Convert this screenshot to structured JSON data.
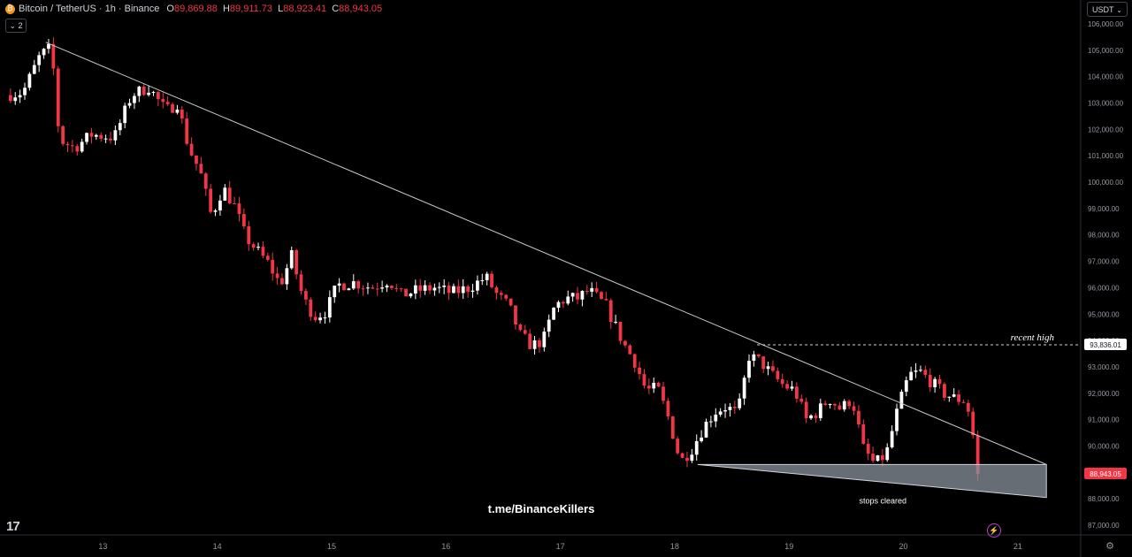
{
  "header": {
    "symbol": "Bitcoin / TetherUS · 1h · Binance",
    "open_label": "O",
    "open": "89,869.88",
    "high_label": "H",
    "high": "89,911.73",
    "low_label": "L",
    "low": "88,923.41",
    "close_label": "C",
    "close": "88,943.05",
    "collapse_label": "⌄ 2",
    "currency": "USDT"
  },
  "colors": {
    "up": "#ffffff",
    "down": "#f23645",
    "background": "#000000",
    "trendline": "#c7c9cf",
    "zone": "#8a919c"
  },
  "icons": [
    "bitcoin-icon",
    "chevron-down-icon",
    "tradingview-logo-icon",
    "settings-icon",
    "lightning-icon"
  ],
  "chart_data": {
    "type": "candlestick",
    "timeframe": "1h",
    "y_ticks": [
      "87,000.00",
      "88,000.00",
      "89,000.00",
      "90,000.00",
      "91,000.00",
      "92,000.00",
      "93,000.00",
      "94,000.00",
      "95,000.00",
      "96,000.00",
      "97,000.00",
      "98,000.00",
      "99,000.00",
      "100,000.00",
      "101,000.00",
      "102,000.00",
      "103,000.00",
      "104,000.00",
      "105,000.00",
      "106,000.00"
    ],
    "ylim": [
      86700,
      106300
    ],
    "x_ticks": [
      "13",
      "14",
      "15",
      "16",
      "17",
      "18",
      "19",
      "20",
      "21"
    ],
    "x_tick_days": [
      13,
      14,
      15,
      16,
      17,
      18,
      19,
      20,
      21
    ],
    "xlim_days": [
      12.1,
      21.55
    ],
    "series_close_path": [
      [
        12.15,
        103300
      ],
      [
        12.3,
        103400
      ],
      [
        12.45,
        104800
      ],
      [
        12.55,
        105100
      ],
      [
        12.62,
        101600
      ],
      [
        12.75,
        101300
      ],
      [
        12.9,
        101800
      ],
      [
        13.1,
        101700
      ],
      [
        13.25,
        103300
      ],
      [
        13.4,
        103600
      ],
      [
        13.55,
        102700
      ],
      [
        13.65,
        103000
      ],
      [
        13.75,
        101300
      ],
      [
        13.85,
        100400
      ],
      [
        13.95,
        98700
      ],
      [
        14.05,
        99800
      ],
      [
        14.15,
        99100
      ],
      [
        14.25,
        97900
      ],
      [
        14.35,
        97400
      ],
      [
        14.45,
        96900
      ],
      [
        14.55,
        96100
      ],
      [
        14.65,
        97200
      ],
      [
        14.75,
        95600
      ],
      [
        14.85,
        94900
      ],
      [
        14.95,
        95100
      ],
      [
        15.05,
        96100
      ],
      [
        15.2,
        96200
      ],
      [
        15.35,
        96000
      ],
      [
        15.5,
        96300
      ],
      [
        15.6,
        95700
      ],
      [
        15.75,
        95900
      ],
      [
        15.9,
        96000
      ],
      [
        16.05,
        95800
      ],
      [
        16.2,
        96000
      ],
      [
        16.35,
        96400
      ],
      [
        16.45,
        95700
      ],
      [
        16.55,
        95300
      ],
      [
        16.65,
        94200
      ],
      [
        16.75,
        93800
      ],
      [
        16.85,
        94000
      ],
      [
        16.95,
        95300
      ],
      [
        17.05,
        95600
      ],
      [
        17.15,
        95600
      ],
      [
        17.25,
        95900
      ],
      [
        17.4,
        95300
      ],
      [
        17.55,
        93900
      ],
      [
        17.65,
        93200
      ],
      [
        17.75,
        92100
      ],
      [
        17.85,
        92200
      ],
      [
        17.95,
        91000
      ],
      [
        18.05,
        89400
      ],
      [
        18.15,
        89900
      ],
      [
        18.25,
        90700
      ],
      [
        18.35,
        91300
      ],
      [
        18.45,
        91500
      ],
      [
        18.55,
        91200
      ],
      [
        18.65,
        93400
      ],
      [
        18.75,
        93200
      ],
      [
        18.85,
        92700
      ],
      [
        18.95,
        92300
      ],
      [
        19.05,
        92100
      ],
      [
        19.15,
        91000
      ],
      [
        19.25,
        91300
      ],
      [
        19.35,
        91800
      ],
      [
        19.45,
        91400
      ],
      [
        19.55,
        91800
      ],
      [
        19.65,
        89900
      ],
      [
        19.75,
        89300
      ],
      [
        19.85,
        89700
      ],
      [
        19.95,
        91400
      ],
      [
        20.05,
        92700
      ],
      [
        20.15,
        92800
      ],
      [
        20.25,
        92400
      ],
      [
        20.35,
        92000
      ],
      [
        20.45,
        91800
      ],
      [
        20.55,
        91700
      ],
      [
        20.6,
        90700
      ],
      [
        20.65,
        88943.05
      ]
    ],
    "annotations": {
      "trendline": [
        [
          12.5,
          105300
        ],
        [
          21.25,
          89300
        ]
      ],
      "recent_high": {
        "label": "recent high",
        "price": "93,836.01",
        "value": 93836.01,
        "from_day": 18.72
      },
      "current_price": {
        "label": "88,943.05",
        "value": 88943.05
      },
      "zone_label": "stops cleared",
      "zone": {
        "top": [
          [
            18.2,
            89300
          ],
          [
            21.25,
            89300
          ]
        ],
        "bottom": [
          [
            18.2,
            89300
          ],
          [
            21.25,
            88050
          ]
        ]
      },
      "watermark": "t.me/BinanceKillers"
    }
  }
}
